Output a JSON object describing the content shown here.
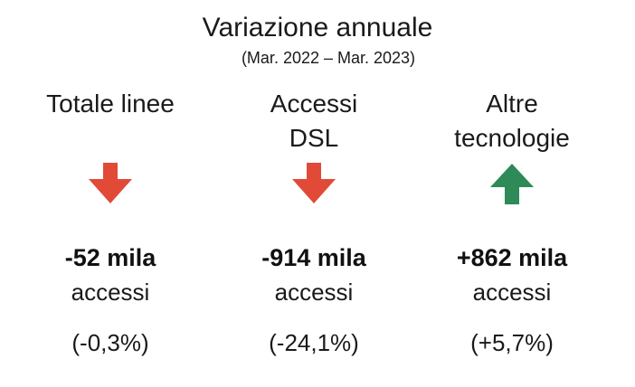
{
  "title": "Variazione annuale",
  "subtitle": "(Mar. 2022 – Mar. 2023)",
  "colors": {
    "down": "#e04a37",
    "up": "#2e8a57"
  },
  "columns": [
    {
      "heading": "Totale linee",
      "direction": "down",
      "arrow_icon": "arrow-down-icon",
      "value": "-52 mila",
      "unit": "accessi",
      "percent": "(-0,3%)"
    },
    {
      "heading": "Accessi\nDSL",
      "direction": "down",
      "arrow_icon": "arrow-down-icon",
      "value": "-914 mila",
      "unit": "accessi",
      "percent": "(-24,1%)"
    },
    {
      "heading": "Altre\ntecnologie",
      "direction": "up",
      "arrow_icon": "arrow-up-icon",
      "value": "+862 mila",
      "unit": "accessi",
      "percent": "(+5,7%)"
    }
  ]
}
